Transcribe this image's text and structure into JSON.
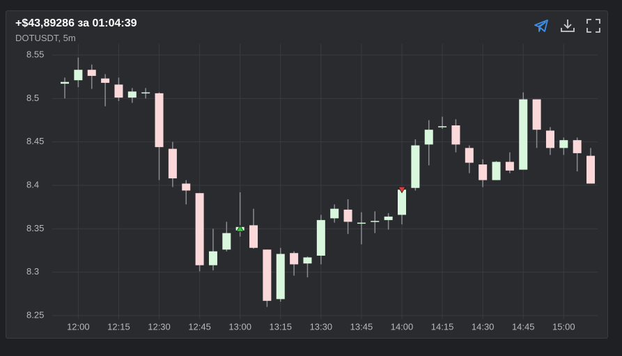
{
  "chart_data": {
    "type": "candlestick",
    "title": "+$43,89286 за 01:04:39",
    "subtitle": "DOTUSDT, 5m",
    "categories": [
      null,
      "12:00",
      null,
      null,
      "12:15",
      null,
      null,
      "12:30",
      null,
      null,
      "12:45",
      null,
      null,
      "13:00",
      null,
      null,
      "13:15",
      null,
      null,
      "13:30",
      null,
      null,
      "13:45",
      null,
      null,
      "14:00",
      null,
      null,
      "14:15",
      null,
      null,
      "14:30",
      null,
      null,
      "14:45",
      null,
      null,
      "15:00",
      null,
      null
    ],
    "open": [
      8.517,
      8.521,
      8.533,
      8.523,
      8.516,
      8.501,
      8.506,
      8.506,
      8.442,
      8.402,
      8.391,
      8.308,
      8.326,
      8.348,
      8.354,
      8.326,
      8.269,
      8.322,
      8.31,
      8.319,
      8.362,
      8.372,
      8.356,
      8.358,
      8.36,
      8.366,
      8.397,
      8.447,
      8.467,
      8.469,
      8.443,
      8.424,
      8.406,
      8.427,
      8.418,
      8.499,
      8.463,
      8.443,
      8.452,
      8.434
    ],
    "high": [
      8.524,
      8.547,
      8.539,
      8.528,
      8.524,
      8.512,
      8.512,
      8.507,
      8.45,
      8.406,
      8.391,
      8.35,
      8.358,
      8.392,
      8.373,
      8.326,
      8.328,
      8.324,
      8.318,
      8.366,
      8.378,
      8.384,
      8.369,
      8.37,
      8.368,
      8.398,
      8.453,
      8.475,
      8.479,
      8.476,
      8.446,
      8.43,
      8.428,
      8.438,
      8.507,
      8.499,
      8.467,
      8.455,
      8.455,
      8.443
    ],
    "low": [
      8.5,
      8.513,
      8.511,
      8.491,
      8.497,
      8.495,
      8.5,
      8.406,
      8.398,
      8.378,
      8.301,
      8.302,
      8.324,
      8.341,
      8.327,
      8.26,
      8.266,
      8.296,
      8.294,
      8.309,
      8.357,
      8.344,
      8.332,
      8.345,
      8.349,
      8.355,
      8.394,
      8.423,
      8.465,
      8.438,
      8.414,
      8.398,
      8.406,
      8.414,
      8.418,
      8.443,
      8.435,
      8.435,
      8.416,
      8.402
    ],
    "close": [
      8.519,
      8.533,
      8.526,
      8.518,
      8.501,
      8.508,
      8.507,
      8.444,
      8.408,
      8.394,
      8.308,
      8.324,
      8.345,
      8.352,
      8.328,
      8.267,
      8.321,
      8.309,
      8.317,
      8.36,
      8.373,
      8.358,
      8.357,
      8.359,
      8.364,
      8.395,
      8.446,
      8.464,
      8.468,
      8.447,
      8.426,
      8.406,
      8.427,
      8.417,
      8.499,
      8.464,
      8.443,
      8.452,
      8.437,
      8.402
    ],
    "up_color": "#d9f7dc",
    "down_color": "#fbd9db",
    "wick_color": "#8a8c92",
    "markers": [
      {
        "category": 13,
        "value": 8.35,
        "direction": "up",
        "color": "#37c837"
      },
      {
        "category": 25,
        "value": 8.395,
        "direction": "down",
        "color": "#e53935"
      }
    ],
    "ylim": [
      8.25,
      8.55
    ],
    "yticks": [
      8.25,
      8.3,
      8.35,
      8.4,
      8.45,
      8.5,
      8.55
    ],
    "grid": true
  }
}
